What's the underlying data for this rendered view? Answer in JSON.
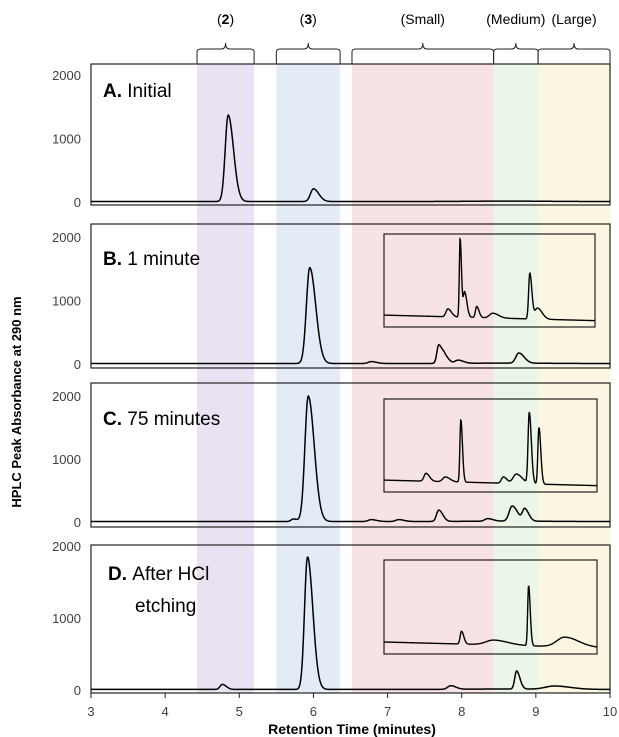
{
  "chart_data": {
    "type": "line",
    "title": "",
    "xlabel": "Retention Time (minutes)",
    "ylabel": "HPLC Peak Absorbance at 290 nm",
    "xlim": [
      3,
      10
    ],
    "xticks": [
      "3",
      "4",
      "5",
      "6",
      "7",
      "8",
      "9",
      "10"
    ],
    "regions": [
      {
        "label": "(2)",
        "label_num": "2",
        "start": 4.43,
        "end": 5.2,
        "color": "#e6ddf0"
      },
      {
        "label": "(3)",
        "label_num": "3",
        "start": 5.5,
        "end": 6.36,
        "color": "#dde8f4"
      },
      {
        "label": "(Small)",
        "start": 6.52,
        "end": 8.43,
        "color": "#f6dede"
      },
      {
        "label": "(Medium)",
        "start": 8.43,
        "end": 9.03,
        "color": "#e8f4e4"
      },
      {
        "label": "(Large)",
        "start": 9.03,
        "end": 10.0,
        "color": "#f9f4dc"
      }
    ],
    "panels": [
      {
        "id": "A",
        "label_letter": "A.",
        "label_text": "Initial",
        "ylim": [
          0,
          2000
        ],
        "yticks": [
          "0",
          "1000",
          "2000"
        ],
        "inset": false,
        "peaks": [
          [
            4.85,
            1360,
            0.04
          ],
          [
            6.0,
            200,
            0.04
          ]
        ]
      },
      {
        "id": "B",
        "label_letter": "B.",
        "label_text": "1 minute",
        "ylim": [
          0,
          2000
        ],
        "yticks": [
          "0",
          "1000",
          "2000"
        ],
        "inset": true,
        "peaks": [
          [
            5.95,
            1510,
            0.045
          ],
          [
            6.78,
            30,
            0.04
          ],
          [
            7.69,
            290,
            0.025
          ],
          [
            7.77,
            110,
            0.03
          ],
          [
            7.95,
            50,
            0.04
          ],
          [
            8.77,
            160,
            0.04
          ]
        ]
      },
      {
        "id": "C",
        "label_letter": "C.",
        "label_text": "75 minutes",
        "ylim": [
          0,
          2000
        ],
        "yticks": [
          "0",
          "1000",
          "2000"
        ],
        "inset": true,
        "peaks": [
          [
            5.93,
            1990,
            0.045
          ],
          [
            5.73,
            40,
            0.03
          ],
          [
            6.78,
            30,
            0.04
          ],
          [
            7.15,
            30,
            0.04
          ],
          [
            7.69,
            180,
            0.03
          ],
          [
            8.35,
            40,
            0.04
          ],
          [
            8.68,
            240,
            0.04
          ],
          [
            8.85,
            190,
            0.03
          ]
        ]
      },
      {
        "id": "D",
        "label_letter": "D.",
        "label_text": "After HCl",
        "label_text2": "etching",
        "ylim": [
          0,
          2000
        ],
        "yticks": [
          "0",
          "1000",
          "2000"
        ],
        "inset": true,
        "peaks": [
          [
            5.92,
            1840,
            0.04
          ],
          [
            4.77,
            70,
            0.03
          ],
          [
            7.85,
            50,
            0.04
          ],
          [
            8.74,
            250,
            0.025
          ],
          [
            9.25,
            45,
            0.12
          ]
        ]
      }
    ],
    "insets": {
      "B": [
        [
          7.69,
          1.0,
          0.012
        ],
        [
          7.76,
          0.32,
          0.02
        ],
        [
          7.5,
          0.1,
          0.03
        ],
        [
          7.95,
          0.14,
          0.02
        ],
        [
          8.2,
          0.06,
          0.05
        ],
        [
          8.78,
          0.58,
          0.018
        ],
        [
          8.9,
          0.14,
          0.04
        ]
      ],
      "C": [
        [
          7.69,
          0.79,
          0.014
        ],
        [
          7.15,
          0.1,
          0.03
        ],
        [
          7.45,
          0.06,
          0.04
        ],
        [
          8.35,
          0.08,
          0.03
        ],
        [
          8.55,
          0.12,
          0.05
        ],
        [
          8.75,
          0.9,
          0.018
        ],
        [
          8.9,
          0.72,
          0.016
        ]
      ],
      "D": [
        [
          7.7,
          0.16,
          0.02
        ],
        [
          8.2,
          0.06,
          0.12
        ],
        [
          8.74,
          0.75,
          0.014
        ],
        [
          9.3,
          0.12,
          0.12
        ]
      ]
    }
  }
}
